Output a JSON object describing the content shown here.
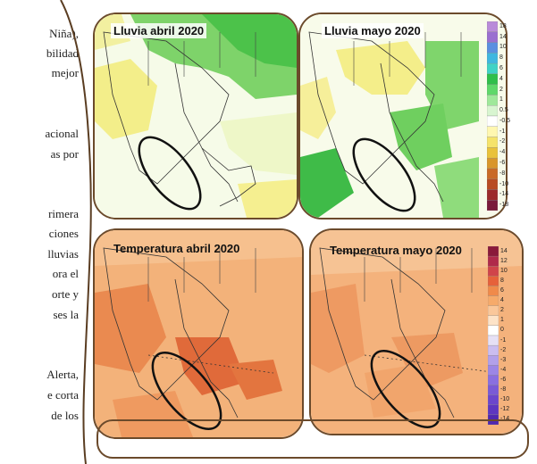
{
  "left_text_lines": [
    "Niña),",
    "bilidad",
    "mejor",
    "acional",
    "as por",
    "rimera",
    "ciones",
    "lluvias",
    "ora el",
    "orte y",
    "ses la",
    "Alerta,",
    "e corta",
    "de los"
  ],
  "panels": {
    "rain_april": {
      "title": "Lluvia abril 2020"
    },
    "rain_may": {
      "title": "Lluvia mayo 2020"
    },
    "temp_april": {
      "title": "Temperatura abril 2020"
    },
    "temp_may": {
      "title": "Temperatura mayo 2020"
    }
  },
  "rain_legend": {
    "labels": [
      "18",
      "14",
      "10",
      "8",
      "6",
      "4",
      "2",
      "1",
      "0.5",
      "-0.5",
      "-1",
      "-2",
      "-4",
      "-6",
      "-8",
      "-10",
      "-14",
      "-18"
    ],
    "colors": [
      "#b98bd9",
      "#9a6fd0",
      "#5b8fe0",
      "#3fb7e0",
      "#3fd3c6",
      "#2fbf4a",
      "#5fd86a",
      "#9fe89a",
      "#d8f5d0",
      "#ffffff",
      "#fff7b0",
      "#f5e36a",
      "#e9c23a",
      "#d9962a",
      "#c96a26",
      "#b84b22",
      "#9c2a2a",
      "#7a1a3a"
    ]
  },
  "temp_legend": {
    "labels": [
      "14",
      "12",
      "10",
      "8",
      "6",
      "4",
      "2",
      "1",
      "0",
      "-1",
      "-2",
      "-3",
      "-4",
      "-6",
      "-8",
      "-10",
      "-12",
      "-14"
    ],
    "colors": [
      "#8a1a3a",
      "#b02a4a",
      "#d0444a",
      "#e6613a",
      "#f08a4a",
      "#f6aa6a",
      "#fac79a",
      "#fde3c8",
      "#ffffff",
      "#e6e0f5",
      "#cbbdf0",
      "#b2a0ea",
      "#9c86e6",
      "#8a6fe0",
      "#7a5ad6",
      "#6c46cc",
      "#5e36c0",
      "#5028b0"
    ]
  }
}
